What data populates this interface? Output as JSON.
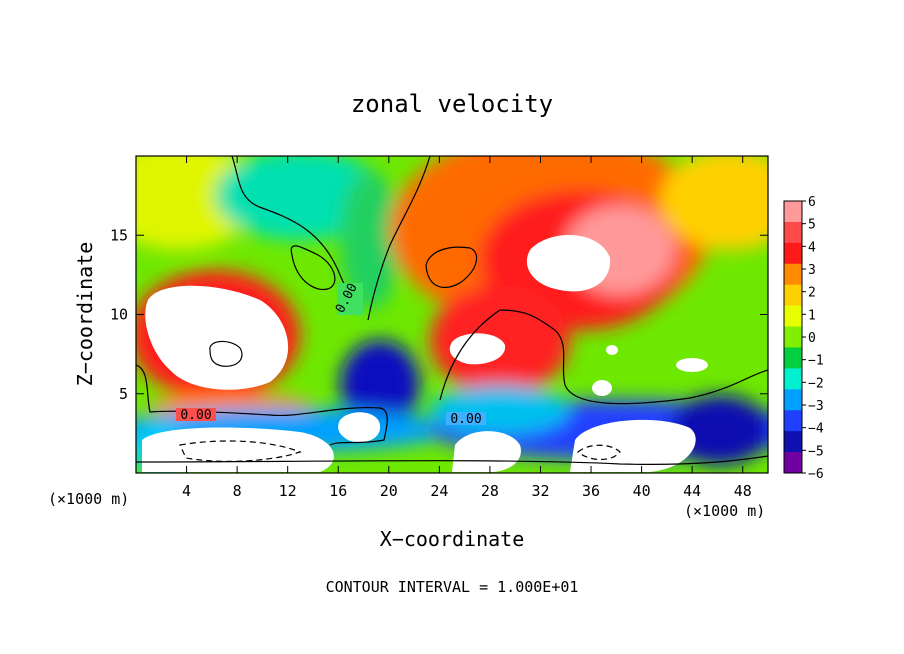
{
  "chart_data": {
    "type": "heatmap",
    "title": "zonal velocity",
    "xlabel": "X−coordinate",
    "ylabel": "Z−coordinate",
    "x_unit_left": "(×1000 m)",
    "x_unit_right": "(×1000 m)",
    "xlim": [
      0,
      50
    ],
    "ylim": [
      0,
      20
    ],
    "x_ticks": [
      4,
      8,
      12,
      16,
      20,
      24,
      28,
      32,
      36,
      40,
      44,
      48
    ],
    "x_tick_labels": [
      "4",
      "8",
      "12",
      "16",
      "20",
      "24",
      "28",
      "32",
      "36",
      "40",
      "44",
      "48"
    ],
    "y_ticks": [
      5,
      10,
      15
    ],
    "y_tick_labels": [
      "5",
      "10",
      "15"
    ],
    "colorbar": {
      "levels": [
        6,
        5,
        4,
        3,
        2,
        1,
        0,
        -1,
        -2,
        -3,
        -4,
        -5,
        -6
      ],
      "labels": [
        "6",
        "5",
        "4",
        "3",
        "2",
        "1",
        "0",
        "−1",
        "−2",
        "−3",
        "−4",
        "−5",
        "−6"
      ],
      "colors": [
        "#ff9a9a",
        "#ff4a4a",
        "#ff1a1a",
        "#ff8c00",
        "#ffd000",
        "#e8ff00",
        "#80f000",
        "#00d040",
        "#00f0d0",
        "#00a0ff",
        "#2040ff",
        "#1010b0",
        "#7000a0"
      ]
    },
    "contour_labels": [
      "0.00",
      "0.00",
      "0.00"
    ],
    "annotation": "CONTOUR INTERVAL = 1.000E+01",
    "grid": false
  }
}
